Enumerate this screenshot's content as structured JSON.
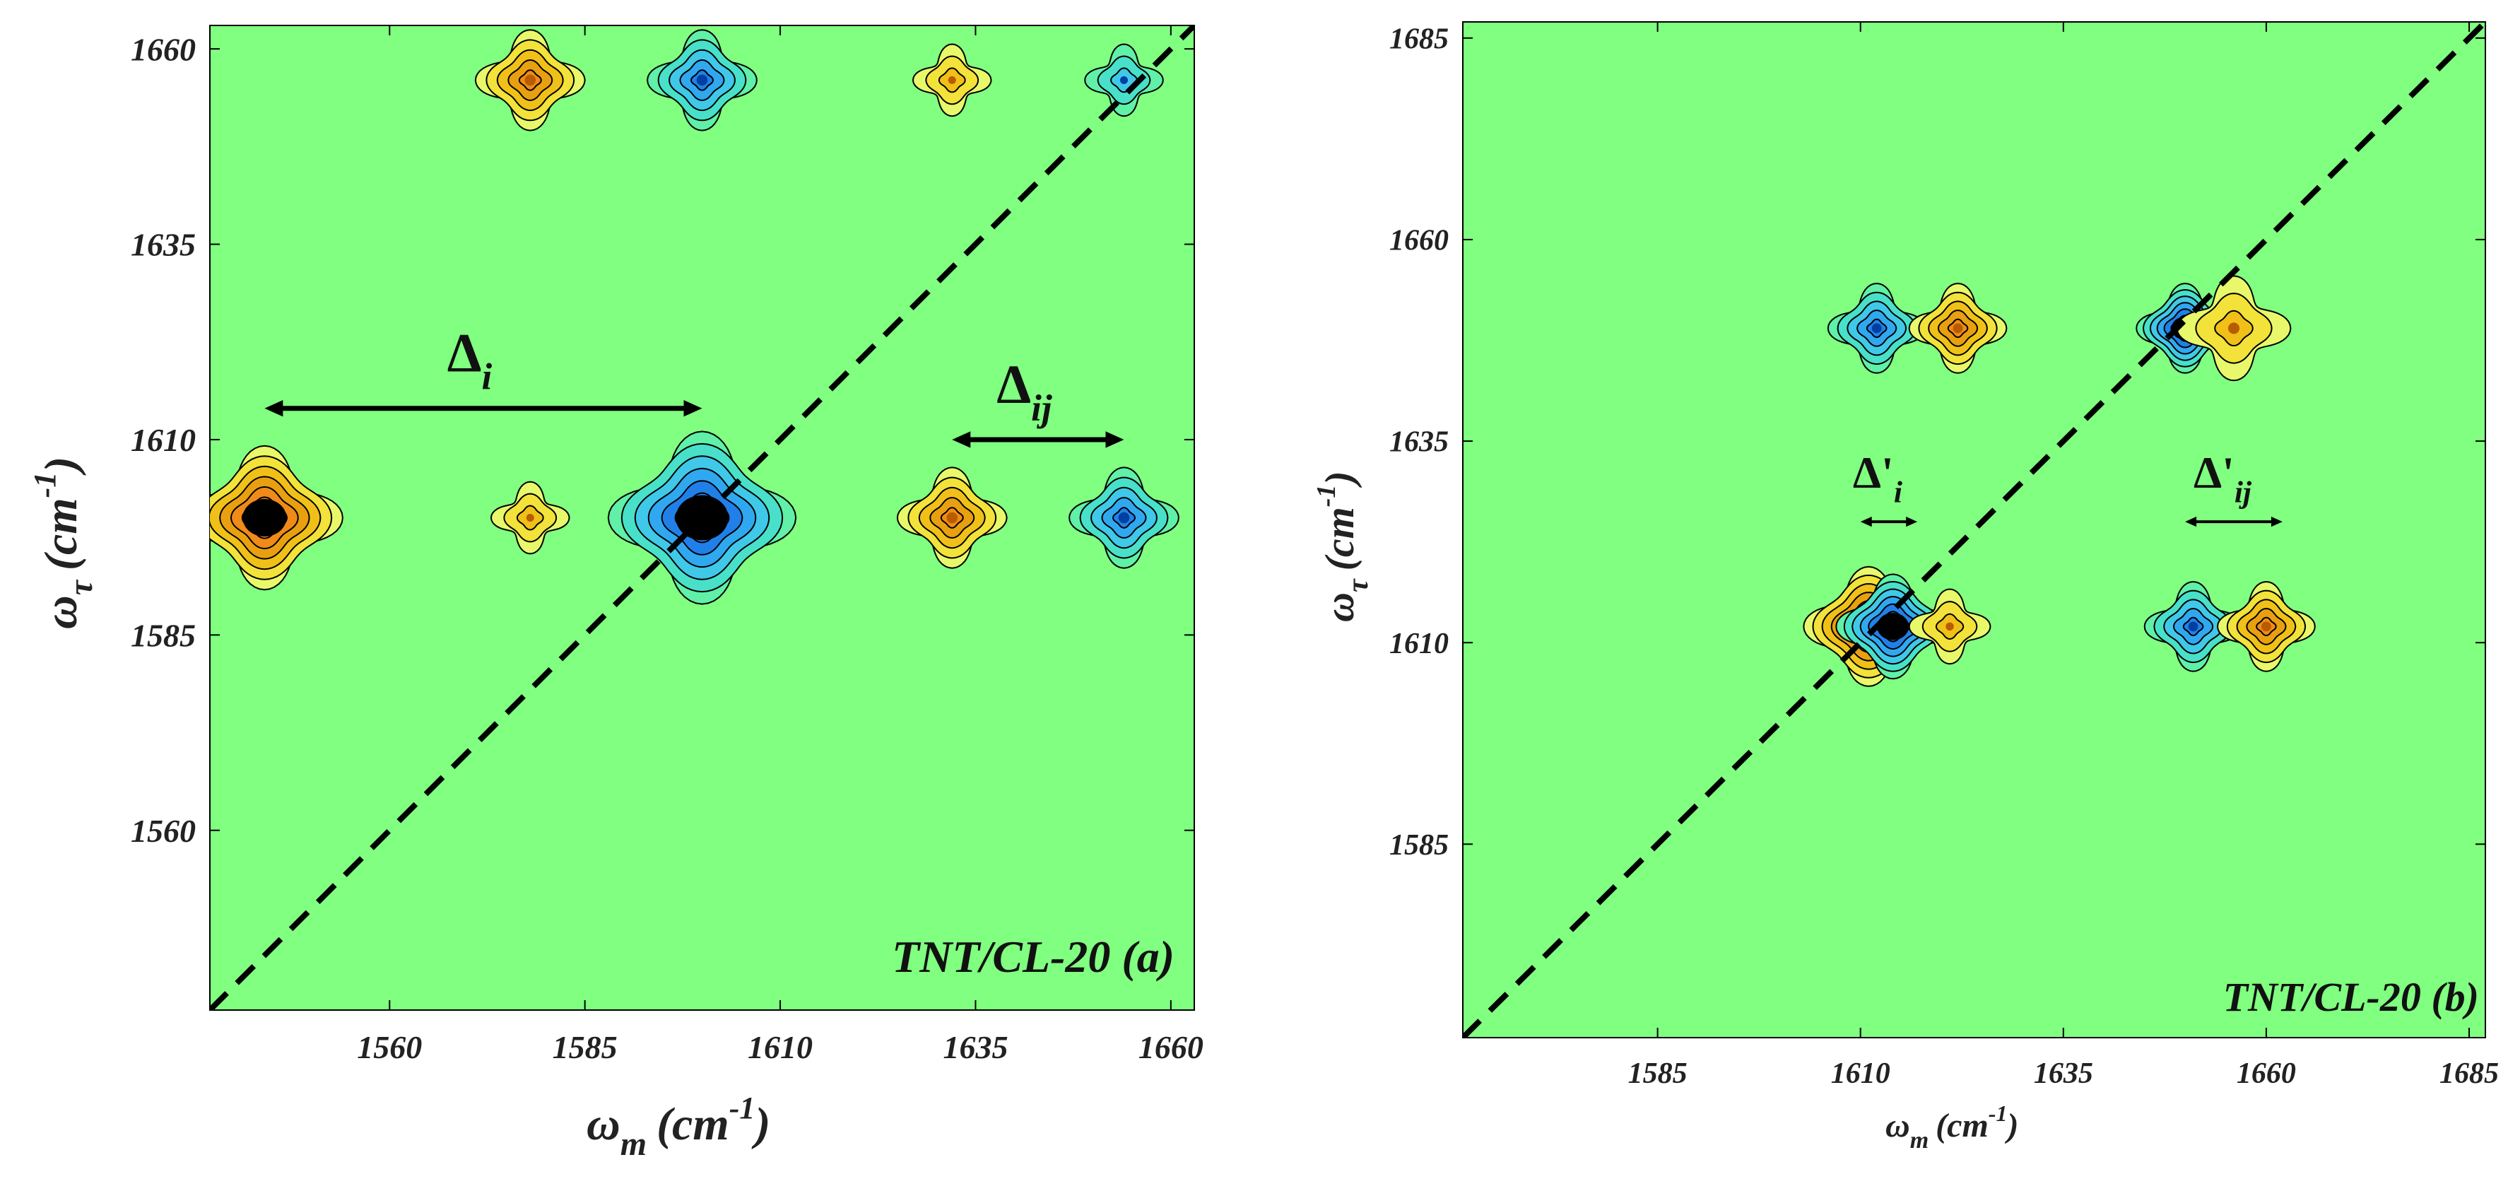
{
  "chart_data": [
    {
      "type": "contour",
      "panel_title": "TNT/CL-20 (a)",
      "xlabel_main": "ω",
      "xlabel_sub": "m",
      "xlabel_unit": "(cm",
      "xlabel_exp": "-1",
      "xlabel_close": ")",
      "ylabel_main": "ω",
      "ylabel_sub": "τ",
      "ylabel_unit": "(cm",
      "ylabel_exp": "-1",
      "ylabel_close": ")",
      "xlim": [
        1537,
        1663
      ],
      "ylim": [
        1537,
        1663
      ],
      "xticks": [
        1560,
        1585,
        1610,
        1635,
        1660
      ],
      "yticks": [
        1560,
        1585,
        1610,
        1635,
        1660
      ],
      "background_color": "#80ff80",
      "diagonal": true,
      "peaks": [
        {
          "x": 1544,
          "y": 1600,
          "sign": "positive",
          "strength": "strong",
          "size": 10
        },
        {
          "x": 1578,
          "y": 1600,
          "sign": "positive",
          "strength": "weak",
          "size": 5
        },
        {
          "x": 1600,
          "y": 1600,
          "sign": "negative",
          "strength": "strong",
          "size": 12
        },
        {
          "x": 1632,
          "y": 1600,
          "sign": "positive",
          "strength": "medium",
          "size": 7
        },
        {
          "x": 1654,
          "y": 1600,
          "sign": "negative",
          "strength": "medium",
          "size": 7
        },
        {
          "x": 1578,
          "y": 1656,
          "sign": "positive",
          "strength": "medium",
          "size": 7
        },
        {
          "x": 1600,
          "y": 1656,
          "sign": "negative",
          "strength": "medium",
          "size": 7
        },
        {
          "x": 1632,
          "y": 1656,
          "sign": "positive",
          "strength": "weak",
          "size": 5
        },
        {
          "x": 1654,
          "y": 1656,
          "sign": "negative",
          "strength": "weak",
          "size": 5
        }
      ],
      "annotations": [
        {
          "label": "Δ",
          "sub": "i",
          "x1": 1544,
          "x2": 1600,
          "y": 1614
        },
        {
          "label": "Δ",
          "sub": "ij",
          "x1": 1632,
          "x2": 1654,
          "y": 1610
        }
      ]
    },
    {
      "type": "contour",
      "panel_title": "TNT/CL-20 (b)",
      "xlabel_main": "ω",
      "xlabel_sub": "m",
      "xlabel_unit": "(cm",
      "xlabel_exp": "-1",
      "xlabel_close": ")",
      "ylabel_main": "ω",
      "ylabel_sub": "τ",
      "ylabel_unit": "(cm",
      "ylabel_exp": "-1",
      "ylabel_close": ")",
      "xlim": [
        1561,
        1687
      ],
      "ylim": [
        1561,
        1687
      ],
      "xticks": [
        1585,
        1610,
        1635,
        1660,
        1685
      ],
      "yticks": [
        1585,
        1610,
        1635,
        1660,
        1685
      ],
      "background_color": "#80ff80",
      "diagonal": true,
      "peaks": [
        {
          "x": 1612,
          "y": 1649,
          "sign": "negative",
          "strength": "medium",
          "size": 6
        },
        {
          "x": 1622,
          "y": 1649,
          "sign": "positive",
          "strength": "medium",
          "size": 6
        },
        {
          "x": 1650,
          "y": 1649,
          "sign": "negative",
          "strength": "strong",
          "size": 6
        },
        {
          "x": 1656,
          "y": 1649,
          "sign": "positive",
          "strength": "weak",
          "size": 7
        },
        {
          "x": 1611,
          "y": 1612,
          "sign": "positive",
          "strength": "strong",
          "size": 8
        },
        {
          "x": 1614,
          "y": 1612,
          "sign": "negative",
          "strength": "strong",
          "size": 7
        },
        {
          "x": 1621,
          "y": 1612,
          "sign": "positive",
          "strength": "weak",
          "size": 5
        },
        {
          "x": 1651,
          "y": 1612,
          "sign": "negative",
          "strength": "medium",
          "size": 6
        },
        {
          "x": 1660,
          "y": 1612,
          "sign": "positive",
          "strength": "medium",
          "size": 6
        }
      ],
      "annotations": [
        {
          "label": "Δ'",
          "sub": "i",
          "x1": 1610,
          "x2": 1617,
          "y": 1625
        },
        {
          "label": "Δ'",
          "sub": "ij",
          "x1": 1650,
          "x2": 1662,
          "y": 1625
        }
      ]
    }
  ]
}
